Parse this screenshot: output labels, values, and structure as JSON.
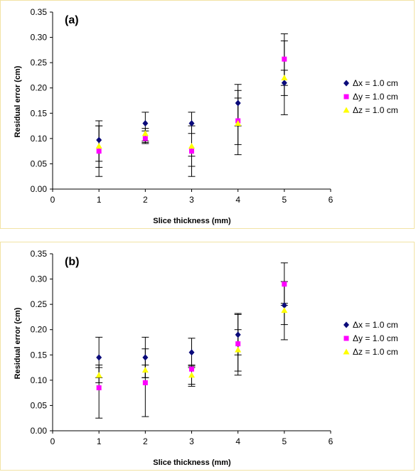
{
  "chart_data": [
    {
      "type": "scatter",
      "panel_label": "(a)",
      "xlabel": "Slice thickness (mm)",
      "ylabel": "Residual error (cm)",
      "xlim": [
        0,
        6
      ],
      "ylim": [
        0,
        0.35
      ],
      "x_ticks": [
        "0",
        "1",
        "2",
        "3",
        "4",
        "5",
        "6"
      ],
      "y_ticks": [
        "0.00",
        "0.05",
        "0.10",
        "0.15",
        "0.20",
        "0.25",
        "0.30",
        "0.35"
      ],
      "grid": false,
      "legend_position": "right",
      "series": [
        {
          "name": "Δx = 1.0 cm",
          "marker": "diamond",
          "color": "#0a0a7a",
          "x": [
            1,
            2,
            3,
            4,
            5
          ],
          "y": [
            0.097,
            0.13,
            0.13,
            0.17,
            0.21
          ],
          "err_low": [
            0.025,
            0.09,
            0.025,
            0.068,
            0.147
          ],
          "err_high": [
            0.135,
            0.152,
            0.152,
            0.207,
            0.307
          ]
        },
        {
          "name": "Δy = 1.0 cm",
          "marker": "square",
          "color": "#ff00ff",
          "x": [
            1,
            2,
            3,
            4,
            5
          ],
          "y": [
            0.075,
            0.1,
            0.075,
            0.135,
            0.257
          ],
          "err_low": [
            0.043,
            0.095,
            0.045,
            0.088,
            0.185
          ],
          "err_high": [
            0.125,
            0.12,
            0.125,
            0.195,
            0.293
          ]
        },
        {
          "name": "Δz = 1.0 cm",
          "marker": "triangle",
          "color": "#ffff00",
          "x": [
            1,
            2,
            3,
            4,
            5
          ],
          "y": [
            0.085,
            0.11,
            0.085,
            0.13,
            0.22
          ],
          "err_low": [
            0.055,
            0.092,
            0.065,
            0.125,
            0.205
          ],
          "err_high": [
            0.125,
            0.115,
            0.11,
            0.18,
            0.235
          ]
        }
      ]
    },
    {
      "type": "scatter",
      "panel_label": "(b)",
      "xlabel": "Slice thickness (mm)",
      "ylabel": "Residual error (cm)",
      "xlim": [
        0,
        6
      ],
      "ylim": [
        0,
        0.35
      ],
      "x_ticks": [
        "0",
        "1",
        "2",
        "3",
        "4",
        "5",
        "6"
      ],
      "y_ticks": [
        "0.00",
        "0.05",
        "0.10",
        "0.15",
        "0.20",
        "0.25",
        "0.30",
        "0.35"
      ],
      "grid": false,
      "legend_position": "right",
      "series": [
        {
          "name": "Δx = 1.0 cm",
          "marker": "diamond",
          "color": "#0a0a7a",
          "x": [
            1,
            2,
            3,
            4,
            5
          ],
          "y": [
            0.145,
            0.145,
            0.155,
            0.19,
            0.248
          ],
          "err_low": [
            0.105,
            0.105,
            0.125,
            0.15,
            0.18
          ],
          "err_high": [
            0.185,
            0.185,
            0.183,
            0.232,
            0.332
          ]
        },
        {
          "name": "Δy = 1.0 cm",
          "marker": "square",
          "color": "#ff00ff",
          "x": [
            1,
            2,
            3,
            4,
            5
          ],
          "y": [
            0.085,
            0.095,
            0.122,
            0.172,
            0.29
          ],
          "err_low": [
            0.025,
            0.028,
            0.088,
            0.11,
            0.248
          ],
          "err_high": [
            0.13,
            0.162,
            0.13,
            0.23,
            0.295
          ]
        },
        {
          "name": "Δz = 1.0 cm",
          "marker": "triangle",
          "color": "#ffff00",
          "x": [
            1,
            2,
            3,
            4,
            5
          ],
          "y": [
            0.11,
            0.12,
            0.11,
            0.16,
            0.238
          ],
          "err_low": [
            0.095,
            0.105,
            0.092,
            0.118,
            0.21
          ],
          "err_high": [
            0.125,
            0.13,
            0.128,
            0.2,
            0.252
          ]
        }
      ]
    }
  ]
}
